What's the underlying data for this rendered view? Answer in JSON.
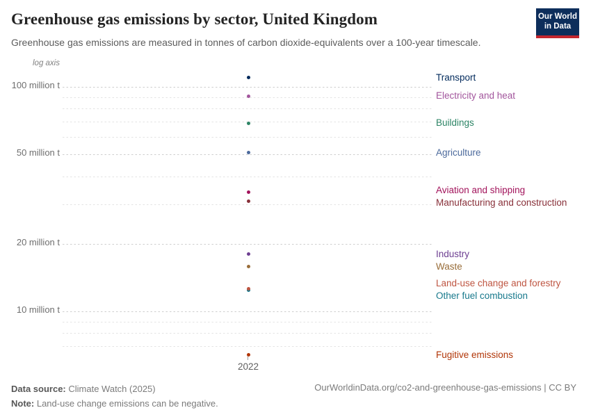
{
  "header": {
    "title": "Greenhouse gas emissions by sector, United Kingdom",
    "subtitle": "Greenhouse gas emissions are measured in tonnes of carbon dioxide-equivalents over a 100-year timescale.",
    "logo": {
      "line1": "Our World",
      "line2": "in Data"
    }
  },
  "chart_data": {
    "type": "scatter",
    "title": "Greenhouse gas emissions by sector, United Kingdom",
    "year": 2022,
    "x_tick_label": "2022",
    "unit": "tonnes of carbon dioxide-equivalents",
    "axis": {
      "scale": "log",
      "scale_label": "log axis",
      "ylim_million_t": [
        6,
        115
      ],
      "labeled_ticks": [
        {
          "value": 100,
          "label": "100 million t"
        },
        {
          "value": 50,
          "label": "50 million t"
        },
        {
          "value": 20,
          "label": "20 million t"
        },
        {
          "value": 10,
          "label": "10 million t"
        }
      ],
      "minor_ticks": [
        90,
        80,
        70,
        60,
        40,
        30,
        9,
        8,
        7
      ]
    },
    "series": [
      {
        "name": "Transport",
        "value_million_t": 110,
        "color": "#00295B"
      },
      {
        "name": "Electricity and heat",
        "value_million_t": 91,
        "color": "#A2559C"
      },
      {
        "name": "Buildings",
        "value_million_t": 69,
        "color": "#2C8465"
      },
      {
        "name": "Agriculture",
        "value_million_t": 51,
        "color": "#4C6A9C"
      },
      {
        "name": "Aviation and shipping",
        "value_million_t": 34,
        "color": "#A2135B"
      },
      {
        "name": "Manufacturing and construction",
        "value_million_t": 31,
        "color": "#883039"
      },
      {
        "name": "Industry",
        "value_million_t": 18,
        "color": "#6D3E91"
      },
      {
        "name": "Waste",
        "value_million_t": 15.8,
        "color": "#996D39"
      },
      {
        "name": "Land-use change and forestry",
        "value_million_t": 12.6,
        "color": "#BE5440"
      },
      {
        "name": "Other fuel combustion",
        "value_million_t": 12.4,
        "color": "#18798C"
      },
      {
        "name": "Fugitive emissions",
        "value_million_t": 6.4,
        "color": "#B13507"
      }
    ]
  },
  "footer": {
    "source_label": "Data source:",
    "source_value": "Climate Watch (2025)",
    "note_label": "Note:",
    "note_value": "Land-use change emissions can be negative.",
    "attribution": "OurWorldinData.org/co2-and-greenhouse-gas-emissions | CC BY"
  }
}
